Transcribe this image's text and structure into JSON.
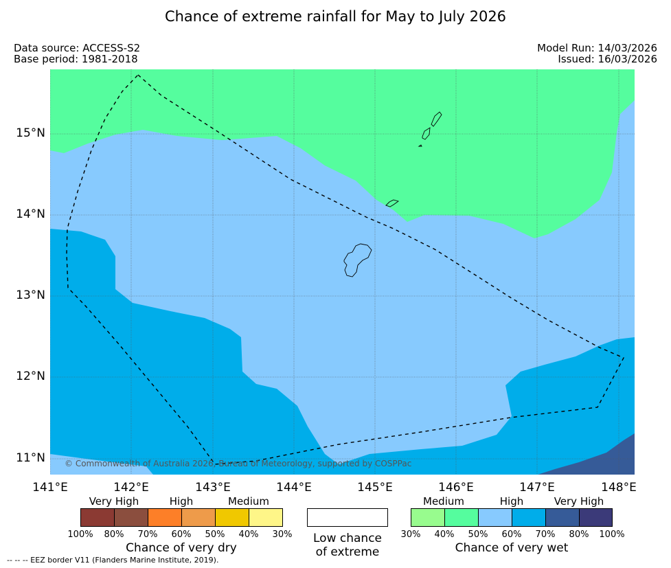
{
  "title": "Chance of extreme rainfall for May to July 2026",
  "meta": {
    "data_source": "Data source: ACCESS-S2",
    "base_period": "Base period: 1981-2018",
    "model_run": "Model Run: 14/03/2026",
    "issued": "Issued: 16/03/2026"
  },
  "map": {
    "lon_labels": [
      "141°E",
      "142°E",
      "143°E",
      "144°E",
      "145°E",
      "146°E",
      "147°E",
      "148°E"
    ],
    "lat_labels": [
      "15°N",
      "14°N",
      "13°N",
      "12°N",
      "11°N"
    ],
    "region_colors": {
      "medium_wet": "#55fd9e",
      "high_wet_light": "#87cafe",
      "high_wet_dark": "#00adea",
      "very_high_wet": "#365b98",
      "eez_border": "#000000"
    },
    "copyright": "© Commonwealth of Australia 2026, Bureau of Meteorology, supported by COSPPac"
  },
  "legend": {
    "dry": {
      "categories": [
        "Very High",
        "High",
        "Medium"
      ],
      "colors": [
        "#8b3a33",
        "#8b4e3e",
        "#fd7f28",
        "#ee9b4a",
        "#f0c800",
        "#fef688"
      ],
      "percentages": [
        "100%",
        "80%",
        "70%",
        "60%",
        "50%",
        "40%",
        "30%"
      ],
      "title": "Chance of very dry"
    },
    "low": {
      "line1": "Low chance",
      "line2": "of extreme",
      "color": "#ffffff"
    },
    "wet": {
      "categories": [
        "Medium",
        "High",
        "Very High"
      ],
      "colors": [
        "#98fc8e",
        "#55fd9e",
        "#87cafe",
        "#00adea",
        "#365b98",
        "#3b3a79"
      ],
      "percentages": [
        "30%",
        "40%",
        "50%",
        "60%",
        "70%",
        "80%",
        "100%"
      ],
      "title": "Chance of very wet"
    }
  },
  "footnote": "--  --  -- EEZ border V11 (Flanders Marine Institute, 2019)."
}
